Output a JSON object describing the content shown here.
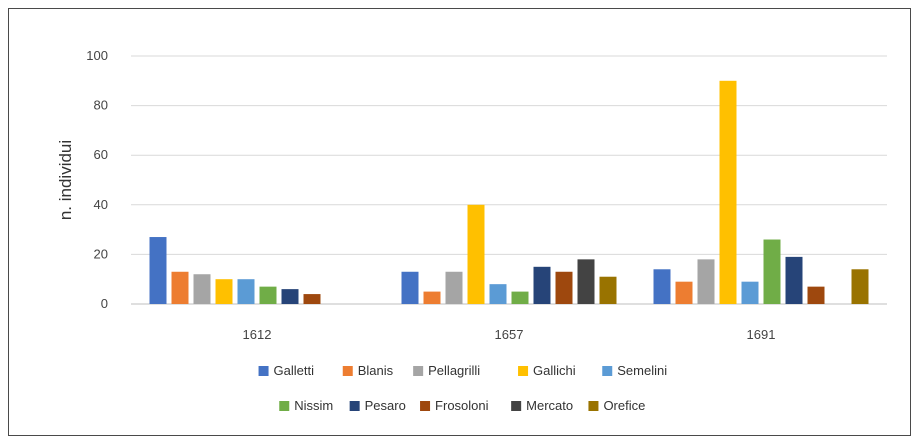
{
  "chart_data": {
    "type": "bar",
    "title": "",
    "xlabel": "",
    "ylabel": "n. individui",
    "ylim": [
      0,
      100
    ],
    "yticks": [
      0,
      20,
      40,
      60,
      80,
      100
    ],
    "grid": true,
    "legend_position": "bottom",
    "categories": [
      "1612",
      "1657",
      "1691"
    ],
    "series": [
      {
        "name": "Galletti",
        "color": "#4472c4",
        "values": [
          27,
          13,
          14
        ]
      },
      {
        "name": "Blanis",
        "color": "#ed7d31",
        "values": [
          13,
          5,
          9
        ]
      },
      {
        "name": "Pellagrilli",
        "color": "#a5a5a5",
        "values": [
          12,
          13,
          18
        ]
      },
      {
        "name": "Gallichi",
        "color": "#ffc000",
        "values": [
          10,
          40,
          90
        ]
      },
      {
        "name": "Semelini",
        "color": "#5b9bd5",
        "values": [
          10,
          8,
          9
        ]
      },
      {
        "name": "Nissim",
        "color": "#70ad47",
        "values": [
          7,
          5,
          26
        ]
      },
      {
        "name": "Pesaro",
        "color": "#264478",
        "values": [
          6,
          15,
          19
        ]
      },
      {
        "name": "Frosoloni",
        "color": "#9e480e",
        "values": [
          4,
          13,
          7
        ]
      },
      {
        "name": "Mercato",
        "color": "#434343",
        "values": [
          0,
          18,
          0
        ]
      },
      {
        "name": "Orefice",
        "color": "#997300",
        "values": [
          0,
          11,
          14
        ]
      }
    ]
  }
}
